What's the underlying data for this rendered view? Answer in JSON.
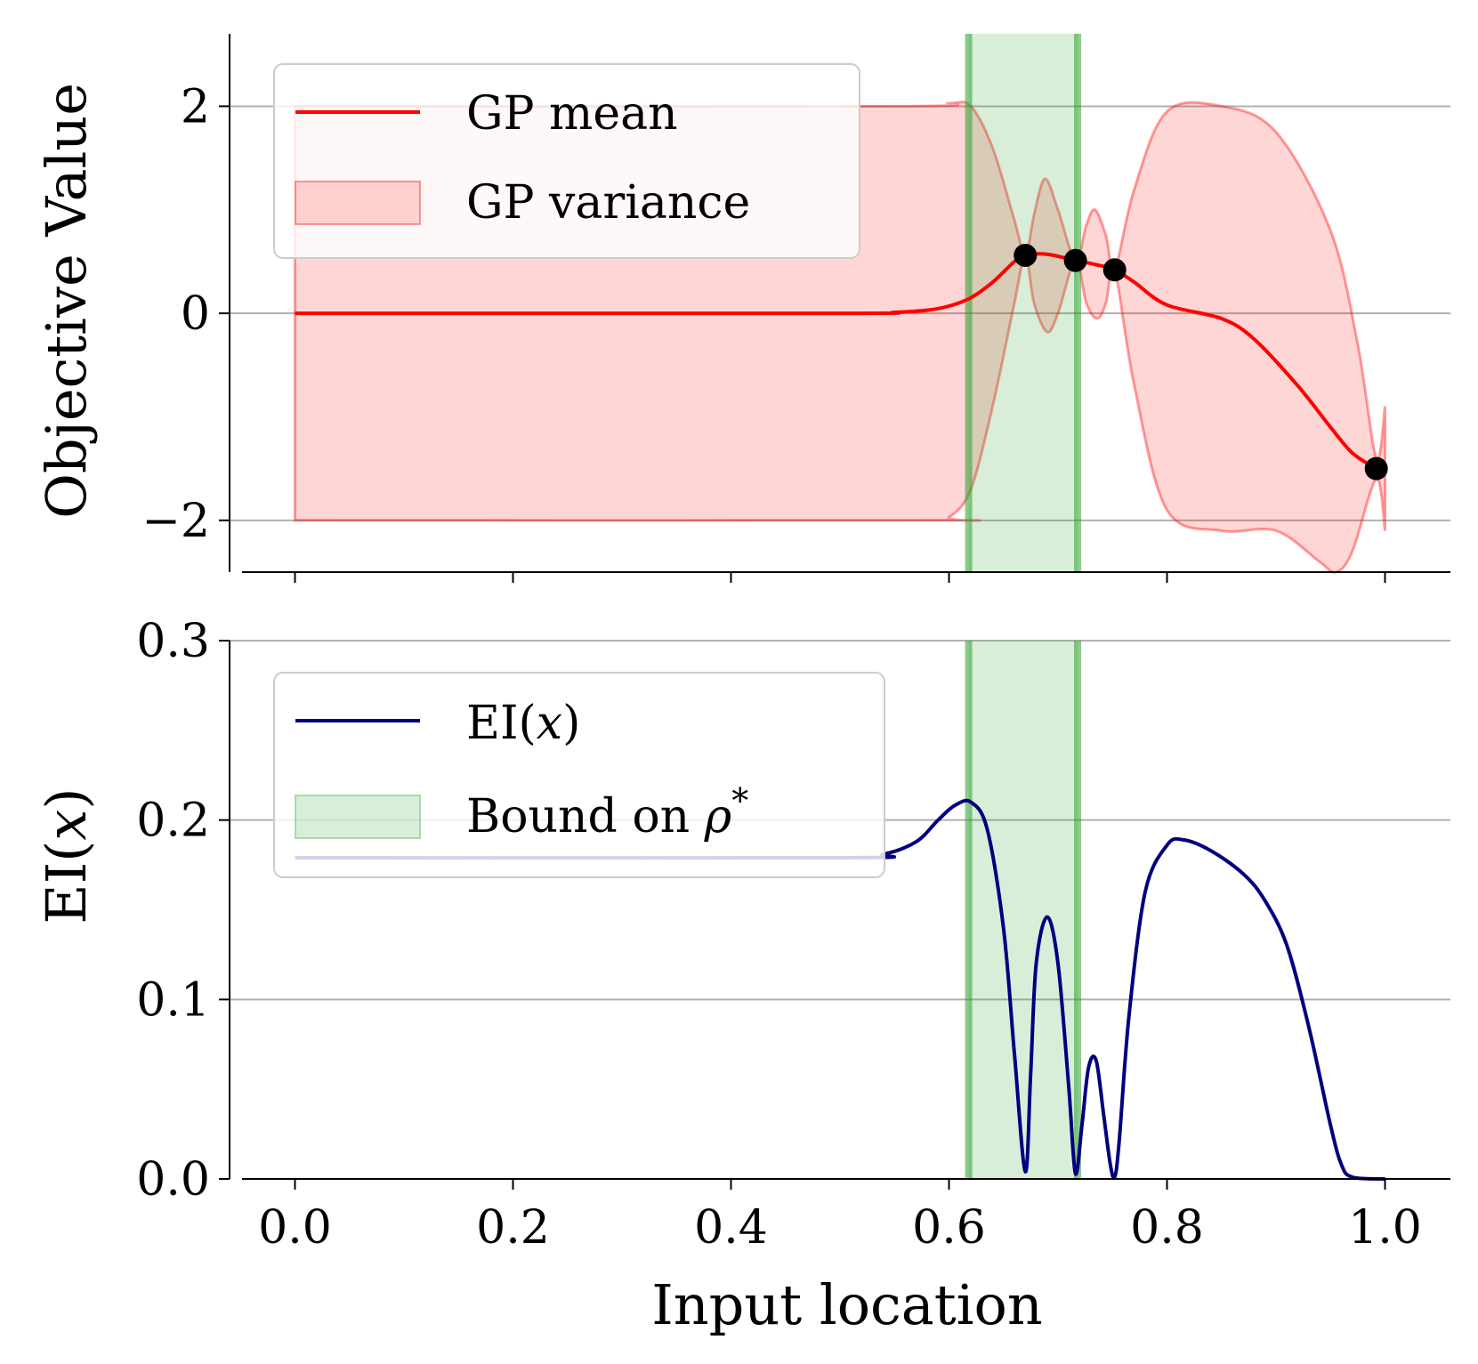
{
  "chart_data": [
    {
      "type": "line",
      "panel": "top",
      "xlabel": "",
      "ylabel": "Objective Value",
      "xlim": [
        -0.06,
        1.06
      ],
      "ylim": [
        -2.5,
        2.7
      ],
      "xticks": [
        0.0,
        0.2,
        0.4,
        0.6,
        0.8,
        1.0
      ],
      "yticks": [
        2,
        0,
        -2
      ],
      "ytick_labels": [
        "2",
        "0",
        "−2"
      ],
      "grid": "horizontal",
      "legend": [
        {
          "key": "mean",
          "label": "GP mean",
          "color": "#ff0000"
        },
        {
          "key": "var",
          "label": "GP variance",
          "color": "#ffc8c8"
        }
      ],
      "bound_band": {
        "x0": 0.618,
        "x1": 0.718,
        "color": "#2ca02c"
      },
      "observations": [
        {
          "x": 0.67,
          "y": 0.56
        },
        {
          "x": 0.716,
          "y": 0.51
        },
        {
          "x": 0.752,
          "y": 0.42
        },
        {
          "x": 0.992,
          "y": -1.5
        }
      ],
      "mean": {
        "x": [
          0.0,
          0.5,
          0.55,
          0.58,
          0.6,
          0.62,
          0.64,
          0.66,
          0.67,
          0.69,
          0.716,
          0.735,
          0.752,
          0.77,
          0.8,
          0.85,
          0.88,
          0.92,
          0.95,
          0.97,
          0.992
        ],
        "y": [
          0.0,
          0.0,
          0.01,
          0.03,
          0.07,
          0.15,
          0.3,
          0.5,
          0.56,
          0.57,
          0.51,
          0.47,
          0.42,
          0.3,
          0.08,
          -0.05,
          -0.25,
          -0.7,
          -1.1,
          -1.35,
          -1.5
        ]
      },
      "upper": {
        "x": [
          0.0,
          0.55,
          0.6,
          0.62,
          0.64,
          0.66,
          0.67,
          0.678,
          0.688,
          0.7,
          0.716,
          0.726,
          0.734,
          0.744,
          0.752,
          0.77,
          0.8,
          0.85,
          0.9,
          0.95,
          0.975,
          0.992,
          1.0
        ],
        "y": [
          2.0,
          2.0,
          2.03,
          2.0,
          1.6,
          0.9,
          0.56,
          0.95,
          1.3,
          1.0,
          0.51,
          0.85,
          1.0,
          0.75,
          0.42,
          1.2,
          1.95,
          2.0,
          1.75,
          0.8,
          -0.3,
          -1.4,
          -0.9
        ]
      },
      "lower": {
        "x": [
          0.0,
          0.58,
          0.6,
          0.62,
          0.64,
          0.66,
          0.67,
          0.678,
          0.69,
          0.7,
          0.716,
          0.726,
          0.736,
          0.744,
          0.752,
          0.77,
          0.8,
          0.85,
          0.9,
          0.94,
          0.955,
          0.97,
          0.992,
          1.0
        ],
        "y": [
          -2.0,
          -2.0,
          -1.97,
          -1.7,
          -0.9,
          0.1,
          0.56,
          0.1,
          -0.18,
          0.0,
          0.51,
          0.1,
          -0.05,
          0.1,
          0.42,
          -0.7,
          -1.9,
          -2.1,
          -2.1,
          -2.4,
          -2.5,
          -2.3,
          -1.6,
          -2.1
        ]
      }
    },
    {
      "type": "line",
      "panel": "bottom",
      "xlabel": "Input location",
      "ylabel": "EI(x)",
      "xlim": [
        -0.06,
        1.06
      ],
      "ylim": [
        0.0,
        0.3
      ],
      "xticks": [
        0.0,
        0.2,
        0.4,
        0.6,
        0.8,
        1.0
      ],
      "xtick_labels": [
        "0.0",
        "0.2",
        "0.4",
        "0.6",
        "0.8",
        "1.0"
      ],
      "yticks": [
        0.0,
        0.1,
        0.2,
        0.3
      ],
      "ytick_labels": [
        "0.0",
        "0.1",
        "0.2",
        "0.3"
      ],
      "grid": "horizontal",
      "legend": [
        {
          "key": "ei",
          "label": "EI(x)",
          "color": "#00007f"
        },
        {
          "key": "bound",
          "label": "Bound on ρ*",
          "color": "#2ca02c"
        }
      ],
      "bound_band": {
        "x0": 0.618,
        "x1": 0.718,
        "color": "#2ca02c"
      },
      "ei": {
        "x": [
          0.0,
          0.5,
          0.54,
          0.57,
          0.59,
          0.605,
          0.62,
          0.635,
          0.65,
          0.66,
          0.67,
          0.675,
          0.68,
          0.69,
          0.7,
          0.71,
          0.716,
          0.722,
          0.728,
          0.735,
          0.742,
          0.748,
          0.752,
          0.756,
          0.765,
          0.78,
          0.8,
          0.815,
          0.84,
          0.87,
          0.89,
          0.91,
          0.93,
          0.95,
          0.96,
          0.97,
          1.0
        ],
        "y": [
          0.179,
          0.179,
          0.181,
          0.188,
          0.2,
          0.208,
          0.21,
          0.195,
          0.14,
          0.07,
          0.004,
          0.06,
          0.12,
          0.146,
          0.12,
          0.05,
          0.003,
          0.03,
          0.062,
          0.066,
          0.035,
          0.008,
          0.001,
          0.02,
          0.09,
          0.16,
          0.186,
          0.189,
          0.183,
          0.17,
          0.155,
          0.13,
          0.085,
          0.03,
          0.008,
          0.001,
          0.0
        ]
      }
    }
  ]
}
